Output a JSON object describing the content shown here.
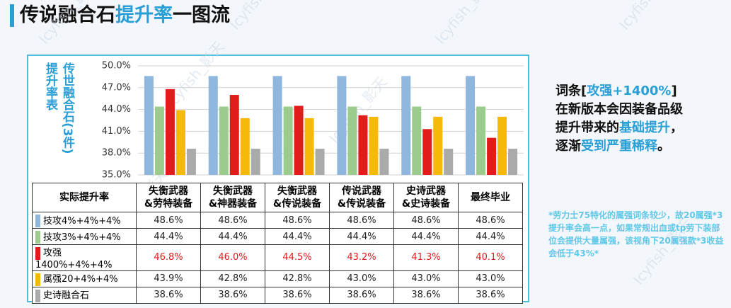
{
  "title_parts": [
    {
      "text": "传说融合石",
      "color": "#111111"
    },
    {
      "text": "提升率",
      "color": "#2a9fd6"
    },
    {
      "text": "一图流",
      "color": "#111111"
    }
  ],
  "watermark": "Icyfish_影天",
  "chart_data": {
    "type": "bar",
    "ylabel_lines": [
      "传世融合石(3件)",
      "提升率表"
    ],
    "table_corner": "实际提升率",
    "categories": [
      "失衡武器\n&劳特装备",
      "失衡武器\n&神器装备",
      "失衡武器\n&传说装备",
      "传说武器\n&传说装备",
      "史诗武器\n&史诗装备",
      "最终毕业"
    ],
    "ylim": [
      35,
      50
    ],
    "yticks": [
      {
        "value": 35,
        "label": "35.0%"
      },
      {
        "value": 38,
        "label": "38.0%"
      },
      {
        "value": 41,
        "label": "41.0%"
      },
      {
        "value": 44,
        "label": "44.0%"
      },
      {
        "value": 47,
        "label": "47.0%"
      },
      {
        "value": 50,
        "label": "50.0%"
      }
    ],
    "grid": true,
    "series": [
      {
        "name": "技攻4%+4%+4%",
        "color": "#8fb6dc",
        "values": [
          48.6,
          48.6,
          48.6,
          48.6,
          48.6,
          48.6
        ],
        "value_labels": [
          "48.6%",
          "48.6%",
          "48.6%",
          "48.6%",
          "48.6%",
          "48.6%"
        ],
        "label_color": "#222222"
      },
      {
        "name": "技攻3%+4%+4%",
        "color": "#9ccc8c",
        "values": [
          44.4,
          44.4,
          44.4,
          44.4,
          44.4,
          44.4
        ],
        "value_labels": [
          "44.4%",
          "44.4%",
          "44.4%",
          "44.4%",
          "44.4%",
          "44.4%"
        ],
        "label_color": "#222222"
      },
      {
        "name": "攻强1400%+4%+4%",
        "color": "#e21b1b",
        "values": [
          46.8,
          46.0,
          44.5,
          43.2,
          41.3,
          40.1
        ],
        "value_labels": [
          "46.8%",
          "46.0%",
          "44.5%",
          "43.2%",
          "41.3%",
          "40.1%"
        ],
        "label_color": "#e21b1b"
      },
      {
        "name": "属强20+4%+4%",
        "color": "#f5b90a",
        "values": [
          43.9,
          42.8,
          42.8,
          43.0,
          43.0,
          43.0
        ],
        "value_labels": [
          "43.9%",
          "42.8%",
          "42.8%",
          "43.0%",
          "43.0%",
          "43.0%"
        ],
        "label_color": "#222222"
      },
      {
        "name": "史诗融合石",
        "color": "#aaaaaa",
        "values": [
          38.6,
          38.6,
          38.6,
          38.6,
          38.6,
          38.6
        ],
        "value_labels": [
          "38.6%",
          "38.6%",
          "38.6%",
          "38.6%",
          "38.6%",
          "38.6%"
        ],
        "label_color": "#222222"
      }
    ]
  },
  "side_text": [
    {
      "text": "词条[",
      "color": "#111111"
    },
    {
      "text": "攻强+1400%",
      "color": "#2a9fd6"
    },
    {
      "text": "]\n在新版本会因装备品级\n提升带来的",
      "color": "#111111"
    },
    {
      "text": "基础提升",
      "color": "#2a9fd6"
    },
    {
      "text": "，\n逐渐",
      "color": "#111111"
    },
    {
      "text": "受到严重稀释",
      "color": "#2a9fd6"
    },
    {
      "text": "。",
      "color": "#111111"
    }
  ],
  "note": "*劳力士75特化的属强词条较少，故20属强*3提升率会高一点，如果常规出血或tp劳下装部位会提供大量属强，该视角下20属强款*3收益会低于43%*"
}
